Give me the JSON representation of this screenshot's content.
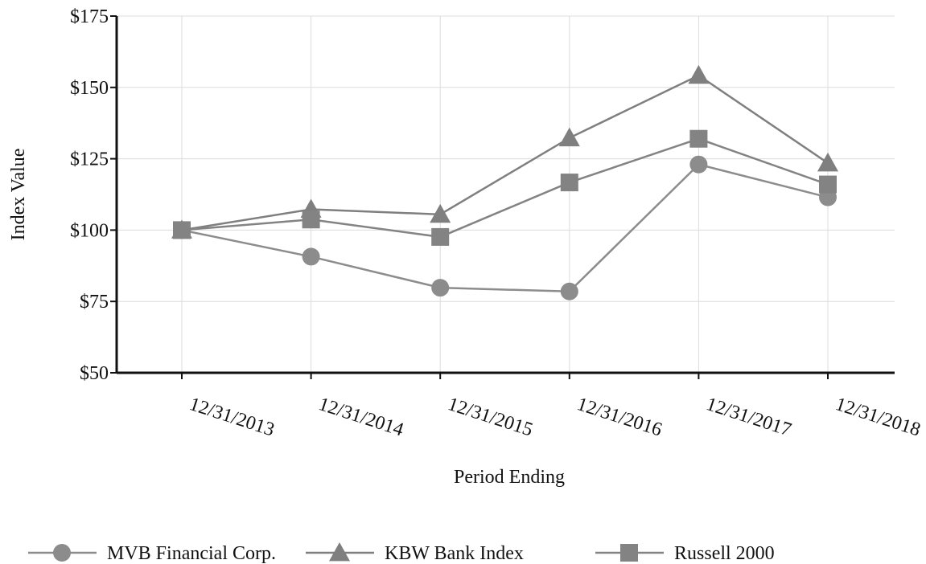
{
  "chart_data": {
    "type": "line",
    "title": "",
    "xlabel": "Period Ending",
    "ylabel": "Index Value",
    "categories": [
      "12/31/2013",
      "12/31/2014",
      "12/31/2015",
      "12/31/2016",
      "12/31/2017",
      "12/31/2018"
    ],
    "ylim": [
      50,
      175
    ],
    "yticks": [
      50,
      75,
      100,
      125,
      150,
      175
    ],
    "ytick_labels": [
      "$50",
      "$75",
      "$100",
      "$125",
      "$150",
      "$175"
    ],
    "grid": true,
    "legend_position": "bottom",
    "series": [
      {
        "name": "MVB Financial Corp.",
        "marker": "circle",
        "color": "#8c8c8c",
        "values": [
          100,
          90.7,
          79.8,
          78.5,
          123,
          111.5
        ]
      },
      {
        "name": "KBW Bank Index",
        "marker": "triangle",
        "color": "#7f7f7f",
        "values": [
          100,
          107.3,
          105.5,
          132.3,
          154.2,
          123.5
        ]
      },
      {
        "name": "Russell 2000",
        "marker": "square",
        "color": "#838383",
        "values": [
          100,
          103.7,
          97.6,
          116.7,
          132,
          116
        ]
      }
    ]
  }
}
